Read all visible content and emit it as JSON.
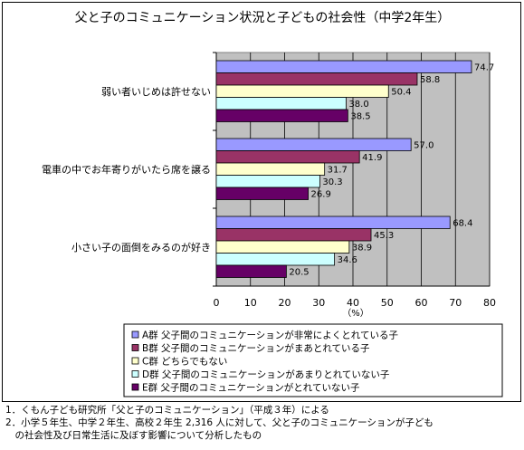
{
  "chart_data": {
    "type": "bar",
    "orientation": "horizontal",
    "title": "父と子のコミュニケーション状況と子どもの社会性（中学2年生）",
    "xlabel": "（%）",
    "xlim": [
      0,
      80
    ],
    "xticks": [
      0,
      10,
      20,
      30,
      40,
      50,
      60,
      70,
      80
    ],
    "grid": true,
    "legend_position": "bottom",
    "categories": [
      "弱い者いじめは許せない",
      "電車の中でお年寄りがいたら席を譲る",
      "小さい子の面倒をみるのが好き"
    ],
    "series": [
      {
        "name": "A群  父子間のコミュニケーションが非常によくとれている子",
        "color": "#9999ff",
        "values": [
          74.7,
          57.0,
          68.4
        ],
        "labels": [
          "74.7",
          "57.0",
          "68.4"
        ]
      },
      {
        "name": "B群  父子間のコミュニケーションがまあとれている子",
        "color": "#993366",
        "values": [
          58.8,
          41.9,
          45.3
        ],
        "labels": [
          "58.8",
          "41.9",
          "45.3"
        ]
      },
      {
        "name": "C群  どちらでもない",
        "color": "#ffffcc",
        "values": [
          50.4,
          31.7,
          38.9
        ],
        "labels": [
          "50.4",
          "31.7",
          "38.9"
        ]
      },
      {
        "name": "D群  父子間のコミュニケーションがあまりとれていない子",
        "color": "#ccffff",
        "values": [
          38.0,
          30.3,
          34.6
        ],
        "labels": [
          "38.0",
          "30.3",
          "34.6"
        ]
      },
      {
        "name": "E群  父子間のコミュニケーションがとれていない子",
        "color": "#660066",
        "values": [
          38.5,
          26.9,
          20.5
        ],
        "labels": [
          "38.5",
          "26.9",
          "20.5"
        ]
      }
    ]
  },
  "notes": [
    "1．くもん子ども研究所「父と子のコミュニケーション」（平成３年）による",
    "2．小学５年生、中学２年生、高校２年生 2,316 人に対して、父と子のコミュニケーションが子ども",
    "　の社会性及び日常生活に及ぼす影響について分析したもの"
  ]
}
